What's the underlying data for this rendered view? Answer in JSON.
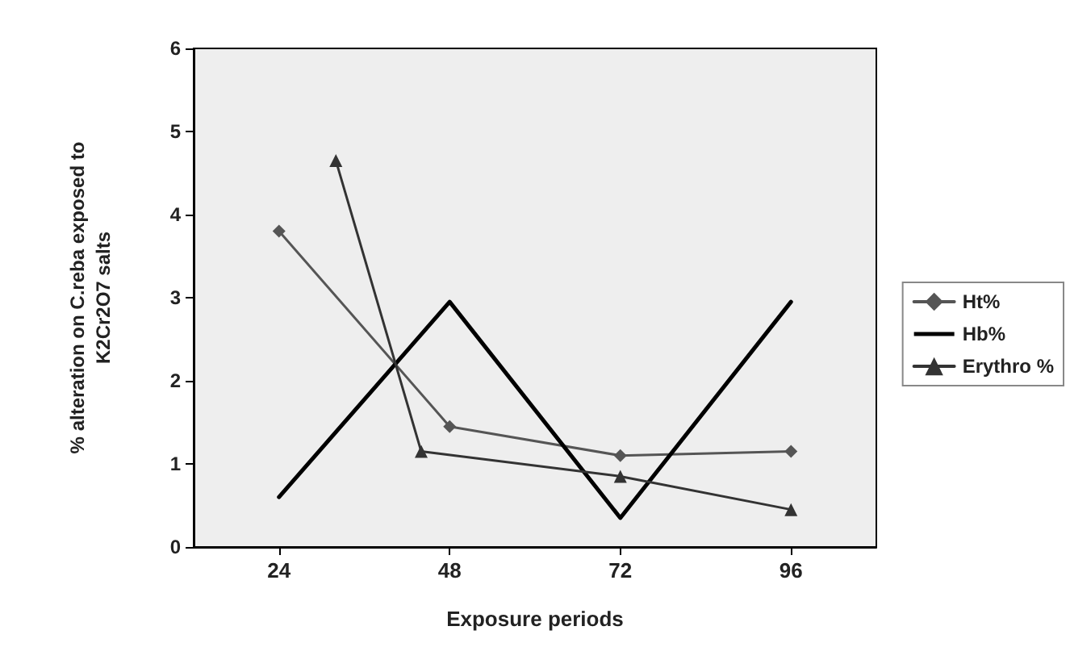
{
  "chart_data": {
    "type": "line",
    "xlabel": "Exposure periods",
    "ylabel": "% alteration on C.reba exposed to\nK2Cr2O7 salts",
    "xlim": [
      12,
      108
    ],
    "xticks": [
      24,
      48,
      72,
      96
    ],
    "ylim": [
      0,
      6
    ],
    "yticks": [
      0,
      1,
      2,
      3,
      4,
      5,
      6
    ],
    "grid": false,
    "legend": "right",
    "series": [
      {
        "name": "Ht%",
        "color": "#555555",
        "marker": "diamond",
        "x": [
          24,
          48,
          72,
          96
        ],
        "values": [
          3.8,
          1.45,
          1.1,
          1.15
        ]
      },
      {
        "name": "Hb%",
        "color": "#000000",
        "marker": "none",
        "x": [
          24,
          48,
          72,
          96
        ],
        "values": [
          0.6,
          2.95,
          0.35,
          2.95
        ]
      },
      {
        "name": "Erythro %",
        "color": "#333333",
        "marker": "triangle",
        "x": [
          32,
          44,
          72,
          96
        ],
        "values": [
          4.65,
          1.15,
          0.85,
          0.45
        ]
      }
    ]
  }
}
